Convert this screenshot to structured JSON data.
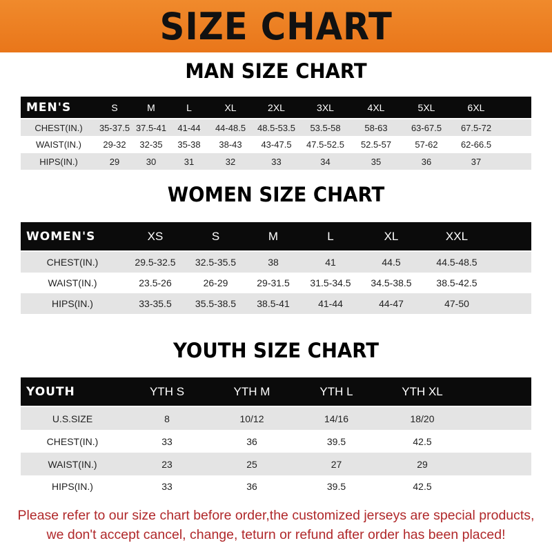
{
  "banner": {
    "title": "SIZE CHART",
    "color": "#ef8128"
  },
  "sections": [
    {
      "title": "MAN SIZE CHART",
      "header": [
        "MEN'S",
        "S",
        "M",
        "L",
        "XL",
        "2XL",
        "3XL",
        "4XL",
        "5XL",
        "6XL"
      ],
      "rows": [
        [
          "CHEST(IN.)",
          "35-37.5",
          "37.5-41",
          "41-44",
          "44-48.5",
          "48.5-53.5",
          "53.5-58",
          "58-63",
          "63-67.5",
          "67.5-72"
        ],
        [
          "WAIST(IN.)",
          "29-32",
          "32-35",
          "35-38",
          "38-43",
          "43-47.5",
          "47.5-52.5",
          "52.5-57",
          "57-62",
          "62-66.5"
        ],
        [
          "HIPS(IN.)",
          "29",
          "30",
          "31",
          "32",
          "33",
          "34",
          "35",
          "36",
          "37"
        ]
      ]
    },
    {
      "title": "WOMEN SIZE CHART",
      "header": [
        "WOMEN'S",
        "XS",
        "S",
        "M",
        "L",
        "XL",
        "XXL"
      ],
      "rows": [
        [
          "CHEST(IN.)",
          "29.5-32.5",
          "32.5-35.5",
          "38",
          "41",
          "44.5",
          "44.5-48.5"
        ],
        [
          "WAIST(IN.)",
          "23.5-26",
          "26-29",
          "29-31.5",
          "31.5-34.5",
          "34.5-38.5",
          "38.5-42.5"
        ],
        [
          "HIPS(IN.)",
          "33-35.5",
          "35.5-38.5",
          "38.5-41",
          "41-44",
          "44-47",
          "47-50"
        ]
      ]
    },
    {
      "title": "YOUTH SIZE CHART",
      "header": [
        "YOUTH",
        "YTH S",
        "YTH M",
        "YTH L",
        "YTH XL"
      ],
      "rows": [
        [
          "U.S.SIZE",
          "8",
          "10/12",
          "14/16",
          "18/20"
        ],
        [
          "CHEST(IN.)",
          "33",
          "36",
          "39.5",
          "42.5"
        ],
        [
          "WAIST(IN.)",
          "23",
          "25",
          "27",
          "29"
        ],
        [
          "HIPS(IN.)",
          "33",
          "36",
          "39.5",
          "42.5"
        ]
      ]
    }
  ],
  "footer": {
    "line1": "Please refer to our size chart before order,the customized jerseys are special products,",
    "line2": "we don't accept cancel, change, teturn or refund after order has been placed!",
    "color": "#b0282a"
  }
}
